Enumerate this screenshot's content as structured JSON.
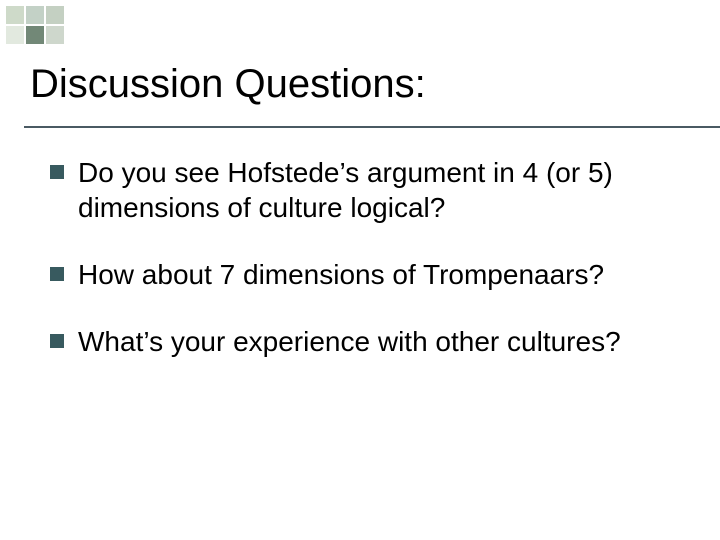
{
  "decoration": {
    "squares": [
      {
        "color": "#c5d4c0",
        "opacity": 0.85
      },
      {
        "color": "#bcccc0",
        "opacity": 0.9
      },
      {
        "color": "#9db09a",
        "opacity": 0.6
      },
      {
        "color": "#c5d4c0",
        "opacity": 0.5
      },
      {
        "color": "#6a8270",
        "opacity": 0.95
      },
      {
        "color": "#9db09a",
        "opacity": 0.5
      }
    ]
  },
  "title": "Discussion Questions:",
  "title_color": "#000000",
  "title_fontsize": 40,
  "underline_color": "#4a5a63",
  "bullets": {
    "marker_color": "#385a5f",
    "marker_size": 14,
    "text_color": "#000000",
    "text_fontsize": 28,
    "items": [
      {
        "text": "Do you see Hofstede’s  argument in 4 (or 5) dimensions of culture logical?"
      },
      {
        "text": "How about 7 dimensions of Trompenaars?"
      },
      {
        "text": "What’s your experience with other cultures?"
      }
    ]
  },
  "background_color": "#ffffff"
}
